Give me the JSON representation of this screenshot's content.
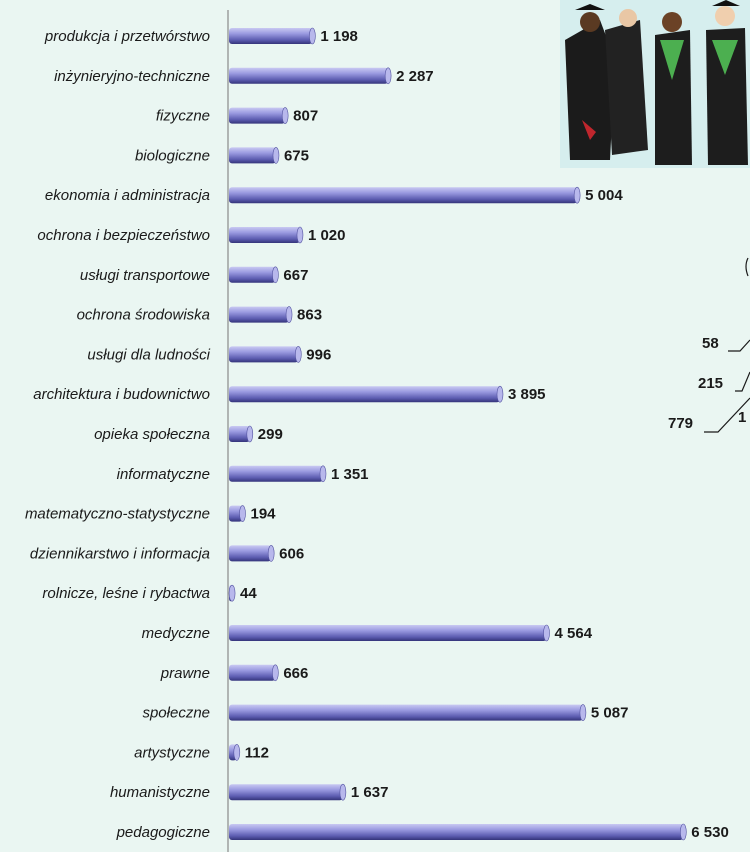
{
  "chart_data": {
    "type": "bar",
    "orientation": "horizontal",
    "categories": [
      "produkcja i przetwórstwo",
      "inżynieryjno-techniczne",
      "fizyczne",
      "biologiczne",
      "ekonomia i administracja",
      "ochrona i bezpieczeństwo",
      "usługi transportowe",
      "ochrona środowiska",
      "usługi dla ludności",
      "architektura i budownictwo",
      "opieka społeczna",
      "informatyczne",
      "matematyczno-statystyczne",
      "dziennikarstwo i informacja",
      "rolnicze, leśne i rybactwa",
      "medyczne",
      "prawne",
      "społeczne",
      "artystyczne",
      "humanistyczne",
      "pedagogiczne"
    ],
    "values": [
      1198,
      2287,
      807,
      675,
      5004,
      1020,
      667,
      863,
      996,
      3895,
      299,
      1351,
      194,
      606,
      44,
      4564,
      666,
      5087,
      112,
      1637,
      6530
    ],
    "value_labels": [
      "1 198",
      "2 287",
      "807",
      "675",
      "5 004",
      "1 020",
      "667",
      "863",
      "996",
      "3 895",
      "299",
      "1 351",
      "194",
      "606",
      "44",
      "4 564",
      "666",
      "5 087",
      "112",
      "1 637",
      "6 530"
    ],
    "color": "#6f6fc8",
    "xlim": [
      0,
      7000
    ],
    "annotations": [
      "58",
      "215",
      "779",
      "1"
    ]
  }
}
